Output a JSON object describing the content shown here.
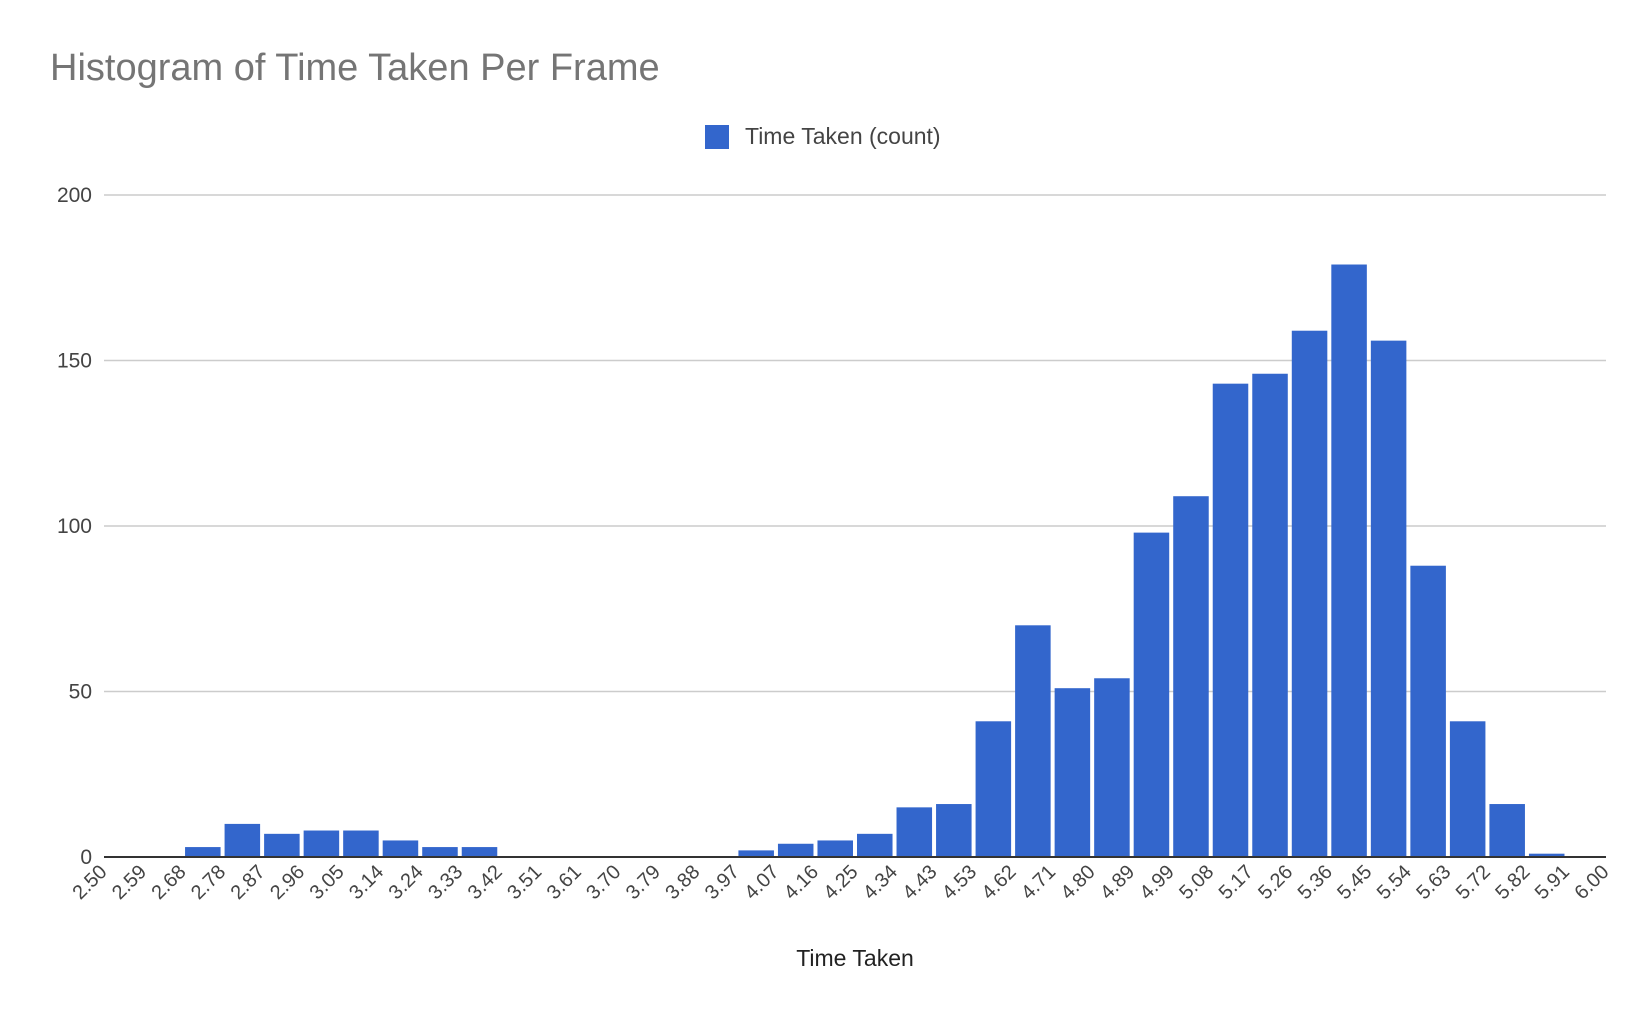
{
  "chart_data": {
    "type": "bar",
    "title": "Histogram of Time Taken Per Frame",
    "xlabel": "Time Taken",
    "ylabel": "",
    "ylim": [
      0,
      200
    ],
    "yticks": [
      "0",
      "50",
      "100",
      "150",
      "200"
    ],
    "xticks": [
      "2.50",
      "2.59",
      "2.68",
      "2.78",
      "2.87",
      "2.96",
      "3.05",
      "3.14",
      "3.24",
      "3.33",
      "3.42",
      "3.51",
      "3.61",
      "3.70",
      "3.79",
      "3.88",
      "3.97",
      "4.07",
      "4.16",
      "4.25",
      "4.34",
      "4.43",
      "4.53",
      "4.62",
      "4.71",
      "4.80",
      "4.89",
      "4.99",
      "5.08",
      "5.17",
      "5.26",
      "5.36",
      "5.45",
      "5.54",
      "5.63",
      "5.72",
      "5.82",
      "5.91",
      "6.00"
    ],
    "grid": true,
    "legend_position": "top-center",
    "series": [
      {
        "name": "Time Taken (count)",
        "color": "#3366cc",
        "values": [
          0,
          0,
          3,
          10,
          7,
          8,
          8,
          5,
          3,
          3,
          0,
          0,
          0,
          0,
          0,
          0,
          2,
          4,
          5,
          7,
          15,
          16,
          41,
          70,
          51,
          54,
          98,
          109,
          143,
          146,
          159,
          179,
          156,
          88,
          41,
          16,
          1,
          0
        ]
      }
    ]
  }
}
